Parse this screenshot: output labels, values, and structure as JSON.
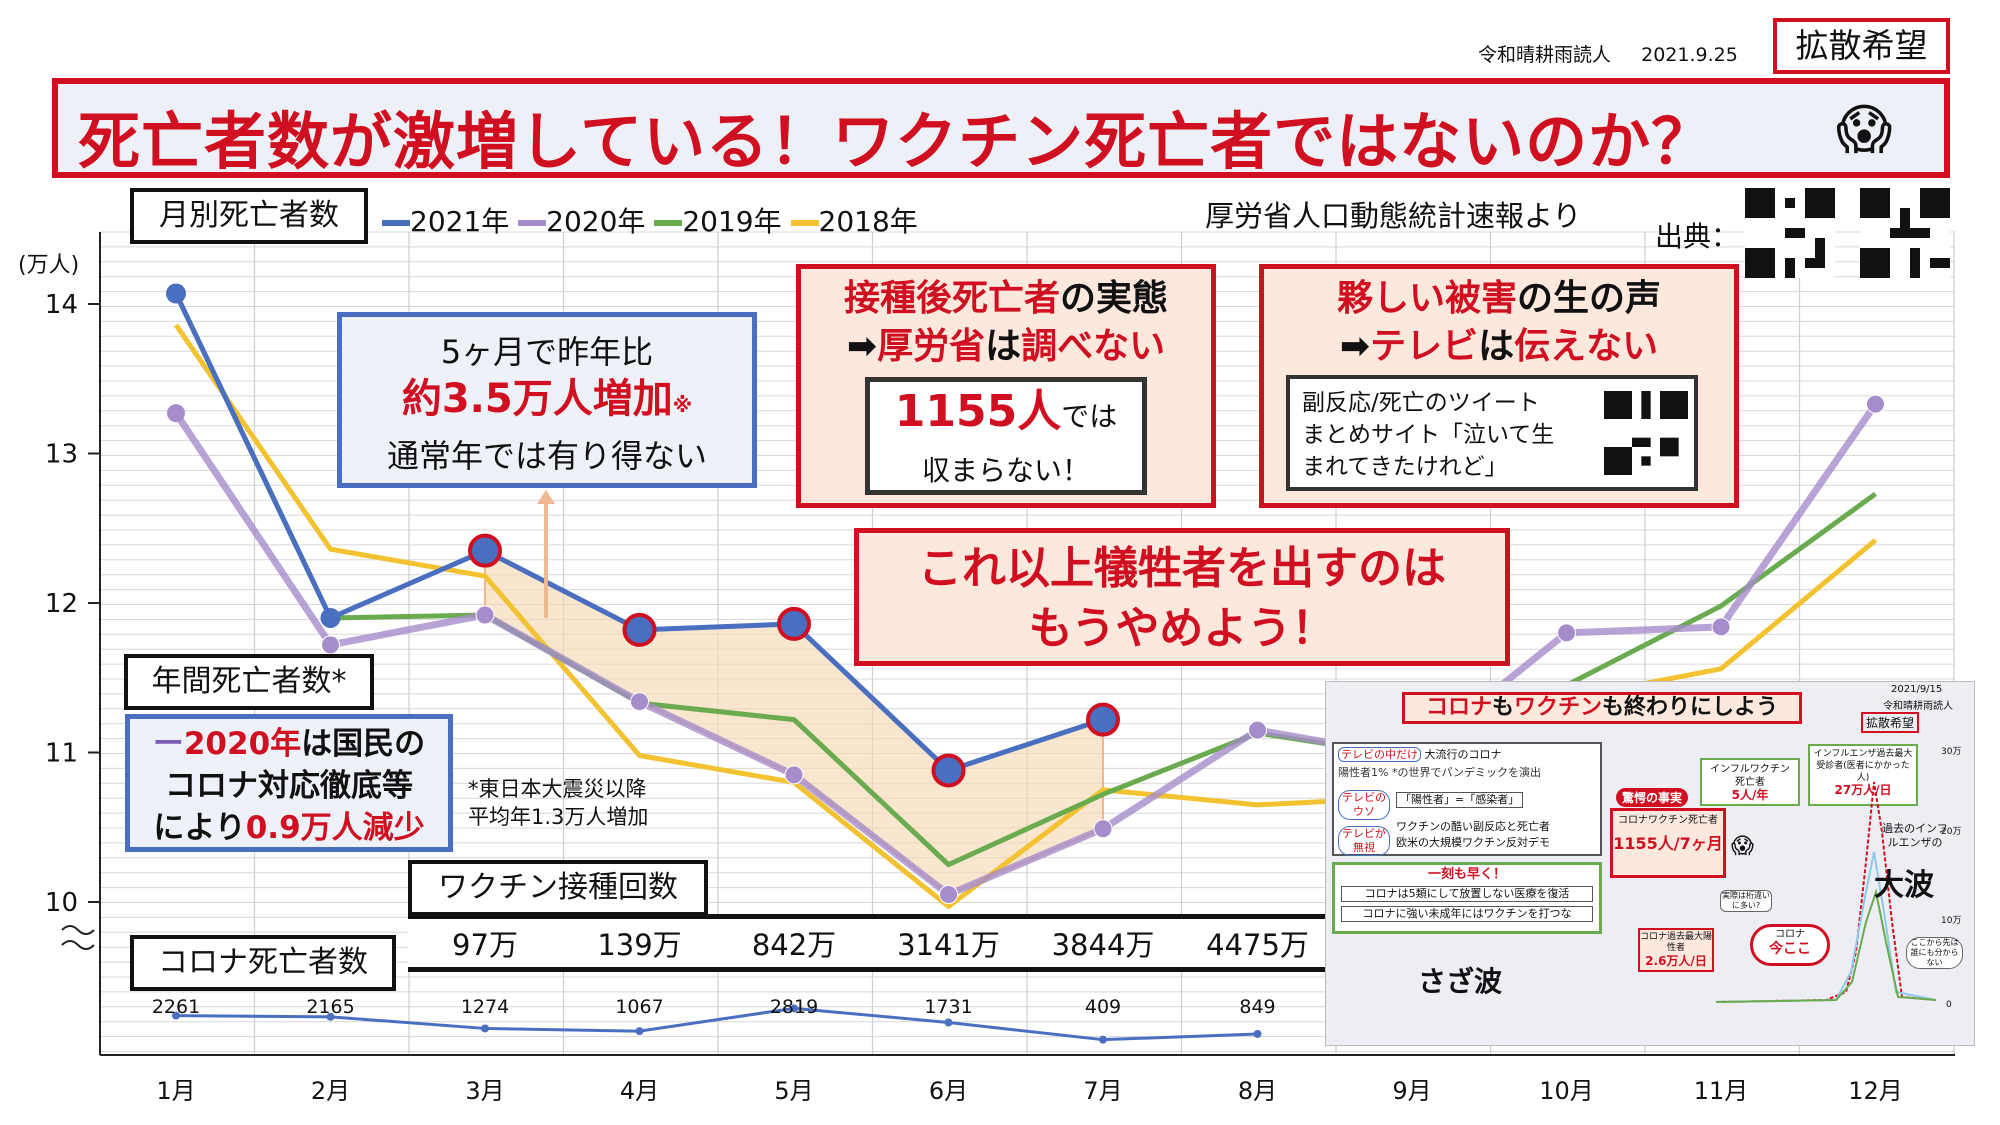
{
  "header": {
    "author": "令和晴耕雨読人",
    "date": "2021.9.25",
    "share_badge": "拡散希望",
    "title": "死亡者数が激増している！ワクチン死亡者ではないのか？",
    "title_emoji": "😱"
  },
  "source": {
    "label": "厚労省人口動態統計速報より",
    "credit": "出典："
  },
  "labels": {
    "monthly_deaths": "月別死亡者数",
    "annual_deaths": "年間死亡者数*",
    "vaccinations": "ワクチン接種回数",
    "covid_deaths": "コロナ死亡者数"
  },
  "callout_increase": {
    "line1": "5ヶ月で昨年比",
    "line2": "約3.5万人増加",
    "mark": "※",
    "line3": "通常年では有り得ない"
  },
  "callout_investigate": {
    "part1_red": "接種後死亡者",
    "part1_black": "の実態",
    "arrow": "➡",
    "part2a_red": "厚労省",
    "part2b": "は",
    "part2c_red": "調べない",
    "inner_number": "1155人",
    "inner_suffix": "では",
    "inner_line2": "収まらない！"
  },
  "callout_tv": {
    "part1_red": "夥しい被害",
    "part1_black": "の生の声",
    "arrow": "➡",
    "part2a_red": "テレビ",
    "part2b": "は",
    "part2c_red": "伝えない",
    "tweet_line1": "副反応/死亡のツイート",
    "tweet_line2": "まとめサイト「泣いて生",
    "tweet_line3": "まれてきたけれど」"
  },
  "callout_stop": {
    "line1": "これ以上犠牲者を出すのは",
    "line2": "もうやめよう！"
  },
  "callout_2020": {
    "dash": "ー",
    "year": "2020年",
    "line1_rest": "は国民の",
    "line2": "コロナ対応徹底等",
    "line3a": "により",
    "line3b": "0.9万人減少"
  },
  "footnote": {
    "line1": "*東日本大震災以降",
    "line2": "平均年1.3万人増加"
  },
  "colors": {
    "s2021": "#4a6fc0",
    "s2020": "#a58ccb",
    "s2019": "#6bab4f",
    "s2018": "#f2c230",
    "accent_red": "#d01020",
    "covid_line": "#4a6fc0"
  },
  "chart_data": {
    "type": "line",
    "categories": [
      "1月",
      "2月",
      "3月",
      "4月",
      "5月",
      "6月",
      "7月",
      "8月",
      "9月",
      "10月",
      "11月",
      "12月"
    ],
    "yunit": "(万人)",
    "yticks": [
      "14",
      "13",
      "12",
      "11",
      "10"
    ],
    "ylim": [
      10,
      14
    ],
    "series": [
      {
        "name": "2021年",
        "color": "#4a6fc0",
        "values": [
          14.07,
          11.9,
          12.35,
          11.82,
          11.86,
          10.88,
          11.22,
          null,
          null,
          null,
          null,
          null
        ]
      },
      {
        "name": "2020年",
        "color": "#a58ccb",
        "values": [
          13.27,
          11.72,
          11.92,
          11.34,
          10.85,
          10.05,
          10.49,
          11.15,
          10.97,
          11.8,
          11.84,
          13.33
        ]
      },
      {
        "name": "2019年",
        "color": "#6bab4f",
        "values": [
          14.07,
          11.9,
          11.92,
          11.33,
          11.22,
          10.25,
          10.72,
          11.13,
          10.97,
          11.45,
          11.98,
          12.73
        ]
      },
      {
        "name": "2018年",
        "color": "#f2c230",
        "values": [
          13.86,
          12.36,
          12.18,
          10.98,
          10.8,
          9.97,
          10.75,
          10.65,
          10.7,
          11.36,
          11.56,
          12.42
        ]
      }
    ],
    "vaccinations": [
      "97万",
      "139万",
      "842万",
      "3141万",
      "3844万",
      "4475万"
    ],
    "covid_deaths": [
      "2261",
      "2165",
      "1274",
      "1067",
      "2819",
      "1731",
      "409",
      "849"
    ]
  },
  "inset": {
    "date": "2021/9/15",
    "author": "令和晴耕雨読人",
    "title_a": "コロナ",
    "title_b": "も",
    "title_c": "ワクチン",
    "title_d": "も終わりにしよう",
    "badge": "拡散希望",
    "tv_center": "テレビの中だけ",
    "big_corona": "大流行のコロナ",
    "positive_line": "陽性者1% *の世界でパンデミックを演出",
    "tv_lie": "テレビのウソ",
    "positive_eq": "「陽性者」=「感染者」",
    "tv_ignore": "テレビが無視",
    "side_effects": "ワクチンの酷い副反応と死亡者",
    "protest": "欧米の大規模ワクチン反対デモ",
    "asap": "一刻も早く！",
    "restore": "コロナは5類にして放置しない医療を復活",
    "vaccine_unborn": "コロナに強い未成年にはワクチンを打つな",
    "shock_fact": "驚愕の事実",
    "covid_vaccine_deaths": "コロナワクチン死亡者",
    "deaths_count": "1155人/7ヶ月",
    "flu_vaccine": "インフルワクチン死亡者",
    "flu_vaccine_rate": "5人/年",
    "flu_patients": "インフルエンザ過去最大受診者(医者にかかった人)",
    "flu_patients_rate": "27万人/日",
    "past_flu": "過去のインフルエンザの",
    "big_wave": "大波",
    "small_wave": "さざ波",
    "corona_max": "コロナ過去最大陽性者",
    "corona_max_rate": "2.6万人/日",
    "corona_now_label": "コロナ",
    "corona_now": "今ここ",
    "actual": "実際は桁違いに多い?",
    "nobody": "ここから先は誰にも分からない",
    "y30": "30万",
    "y20": "20万",
    "y10": "10万",
    "y0": "0"
  }
}
